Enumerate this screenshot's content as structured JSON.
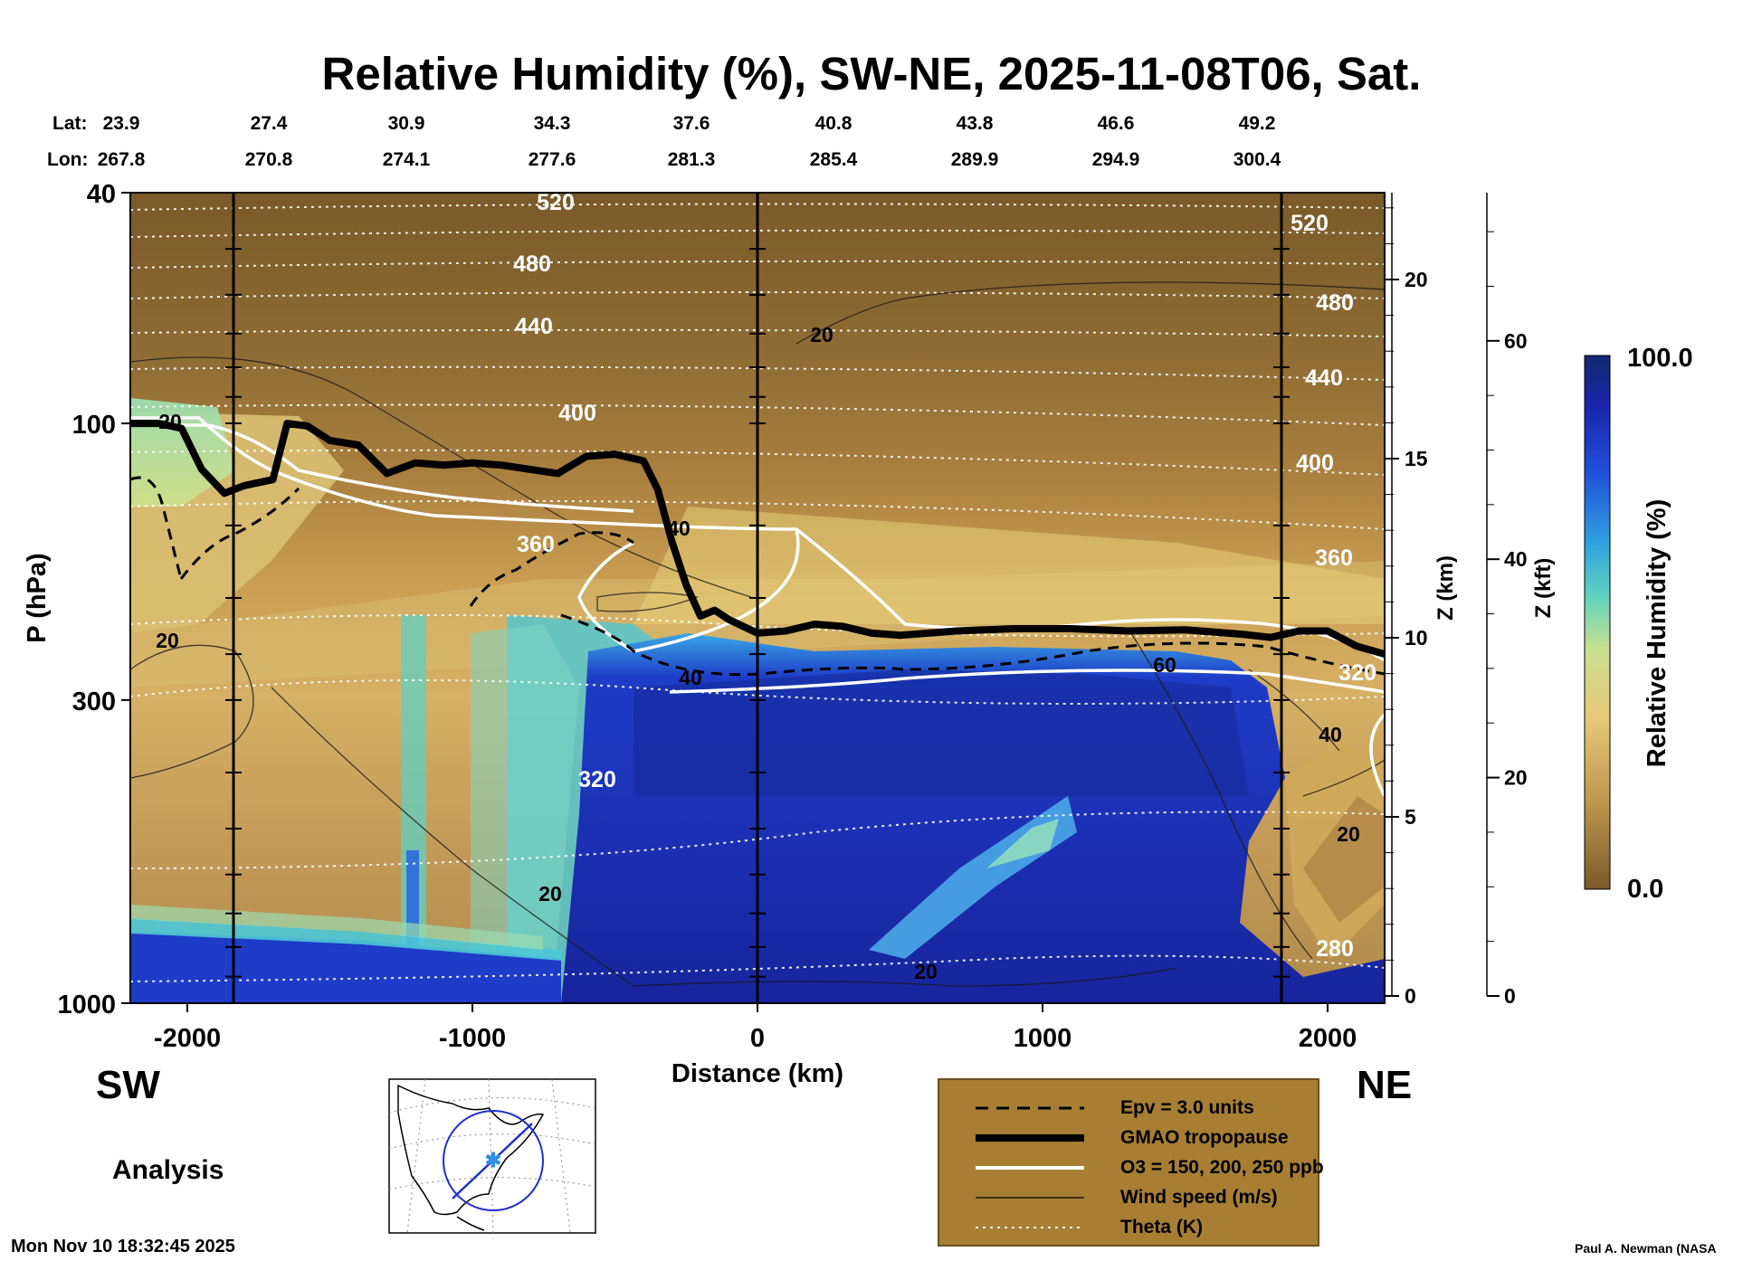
{
  "chart_data": {
    "type": "heatmap",
    "title": "Relative Humidity (%), SW-NE, 2025-11-08T06, Sat.",
    "xlabel": "Distance (km)",
    "ylabel": "P (hPa)",
    "xlim": [
      -2200,
      2200
    ],
    "ylim": [
      1000,
      40
    ],
    "yscale": "log",
    "x_ticks": [
      -2000,
      -1000,
      0,
      1000,
      2000
    ],
    "y_ticks": [
      40,
      100,
      300,
      1000
    ],
    "z_km_label": "Z (km)",
    "z_km_ticks": [
      0,
      5,
      10,
      15,
      20
    ],
    "z_kft_label": "Z (kft)",
    "z_kft_ticks": [
      0,
      20,
      40,
      60
    ],
    "lat_label": "Lat:",
    "lon_label": "Lon:",
    "lat": [
      "23.9",
      "27.4",
      "30.9",
      "34.3",
      "37.6",
      "40.8",
      "43.8",
      "46.6",
      "49.2"
    ],
    "lon": [
      "267.8",
      "270.8",
      "274.1",
      "277.6",
      "281.3",
      "285.4",
      "289.9",
      "294.9",
      "300.4"
    ],
    "colorbar": {
      "label": "Relative Humidity (%)",
      "min": "0.0",
      "max": "100.0"
    },
    "colors": {
      "dry": "#7a5a2a",
      "mid": "#e6c270",
      "moist": "#7fd8c8",
      "wet": "#1a2aa8",
      "background": "#ffffff"
    },
    "theta_labels": [
      "520",
      "480",
      "440",
      "400",
      "360",
      "320",
      "520",
      "480",
      "440",
      "400",
      "360",
      "320",
      "280"
    ],
    "wind_labels": [
      "20",
      "20",
      "20",
      "40",
      "20",
      "20",
      "60",
      "40",
      "20",
      "40"
    ],
    "tropopause_pressure": [
      [
        -2200,
        100
      ],
      [
        -2100,
        100
      ],
      [
        -2020,
        102
      ],
      [
        -1950,
        120
      ],
      [
        -1870,
        132
      ],
      [
        -1800,
        128
      ],
      [
        -1700,
        125
      ],
      [
        -1650,
        100
      ],
      [
        -1580,
        101
      ],
      [
        -1500,
        107
      ],
      [
        -1400,
        109
      ],
      [
        -1300,
        122
      ],
      [
        -1200,
        117
      ],
      [
        -1100,
        118
      ],
      [
        -1000,
        117
      ],
      [
        -900,
        118
      ],
      [
        -800,
        120
      ],
      [
        -700,
        122
      ],
      [
        -600,
        114
      ],
      [
        -500,
        113
      ],
      [
        -400,
        116
      ],
      [
        -350,
        130
      ],
      [
        -300,
        160
      ],
      [
        -250,
        190
      ],
      [
        -200,
        215
      ],
      [
        -150,
        210
      ],
      [
        -100,
        218
      ],
      [
        -50,
        224
      ],
      [
        0,
        230
      ],
      [
        100,
        228
      ],
      [
        200,
        222
      ],
      [
        300,
        224
      ],
      [
        400,
        230
      ],
      [
        500,
        232
      ],
      [
        700,
        228
      ],
      [
        900,
        226
      ],
      [
        1100,
        226
      ],
      [
        1300,
        228
      ],
      [
        1500,
        227
      ],
      [
        1700,
        231
      ],
      [
        1800,
        234
      ],
      [
        1900,
        228
      ],
      [
        2000,
        228
      ],
      [
        2100,
        242
      ],
      [
        2200,
        250
      ]
    ],
    "legend": [
      {
        "label": "Epv = 3.0 units",
        "style": "dashed"
      },
      {
        "label": "GMAO tropopause",
        "style": "thick"
      },
      {
        "label": "O3 = 150, 200, 250 ppb",
        "style": "white"
      },
      {
        "label": "Wind speed (m/s)",
        "style": "thin"
      },
      {
        "label": "Theta (K)",
        "style": "dotted"
      }
    ]
  },
  "labels": {
    "sw": "SW",
    "ne": "NE",
    "analysis": "Analysis",
    "timestamp": "Mon Nov 10 18:32:45 2025",
    "credit": "Paul A. Newman (NASA"
  }
}
